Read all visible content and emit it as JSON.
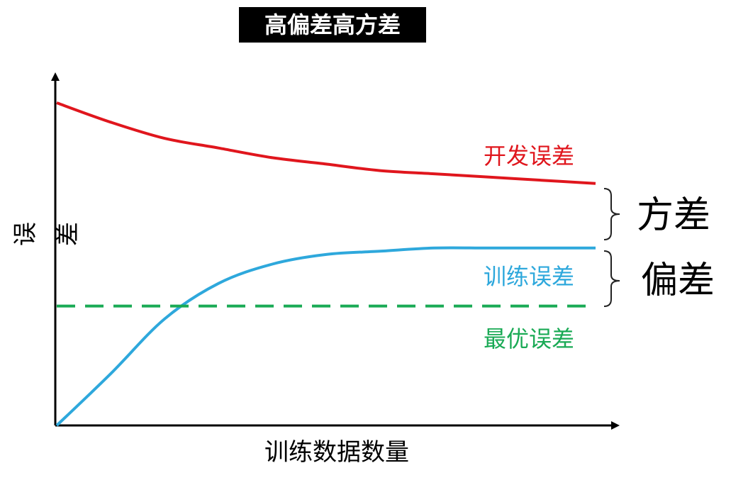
{
  "chart_data": {
    "type": "line",
    "title": "高偏差高方差",
    "xlabel": "训练数据数量",
    "ylabel": "误差",
    "series": [
      {
        "name": "开发误差",
        "color": "#e0161d",
        "style": "solid",
        "x": [
          0,
          0.1,
          0.2,
          0.3,
          0.4,
          0.5,
          0.6,
          0.7,
          0.8,
          0.9,
          1.0
        ],
        "y": [
          1.0,
          0.94,
          0.89,
          0.86,
          0.83,
          0.81,
          0.79,
          0.78,
          0.77,
          0.76,
          0.75
        ]
      },
      {
        "name": "训练误差",
        "color": "#2ea8dc",
        "style": "solid",
        "x": [
          0,
          0.1,
          0.2,
          0.3,
          0.4,
          0.5,
          0.6,
          0.7,
          0.8,
          0.9,
          1.0
        ],
        "y": [
          0.0,
          0.16,
          0.33,
          0.44,
          0.5,
          0.53,
          0.54,
          0.55,
          0.55,
          0.55,
          0.55
        ]
      },
      {
        "name": "最优误差",
        "color": "#1aaa55",
        "style": "dashed",
        "x": [
          0,
          1.0
        ],
        "y": [
          0.37,
          0.37
        ]
      }
    ],
    "annotations": [
      {
        "text": "方差",
        "between": [
          "开发误差",
          "训练误差"
        ]
      },
      {
        "text": "偏差",
        "between": [
          "训练误差",
          "最优误差"
        ]
      }
    ],
    "grid": false,
    "xlim": [
      0,
      1
    ],
    "ylim": [
      0,
      1
    ]
  }
}
